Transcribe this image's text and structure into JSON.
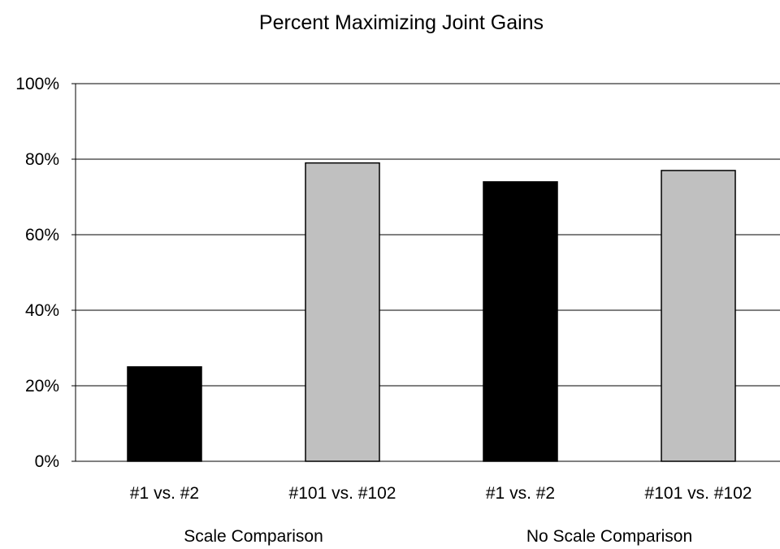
{
  "chart_data": {
    "type": "bar",
    "title": "Percent Maximizing Joint Gains",
    "xlabel": "",
    "ylabel": "",
    "ylim": [
      0,
      100
    ],
    "yticks": [
      "0%",
      "20%",
      "40%",
      "60%",
      "80%",
      "100%"
    ],
    "yticks_values": [
      0,
      20,
      40,
      60,
      80,
      100
    ],
    "categories": [
      "#1 vs. #2",
      "#101 vs. #102",
      "#1 vs. #2",
      "#101 vs. #102"
    ],
    "groups": [
      "Scale Comparison",
      "No Scale Comparison"
    ],
    "values": [
      25,
      79,
      74,
      77
    ],
    "bar_colors": [
      "#000000",
      "#c0c0c0",
      "#000000",
      "#c0c0c0"
    ],
    "grid": true,
    "legend": "none"
  }
}
